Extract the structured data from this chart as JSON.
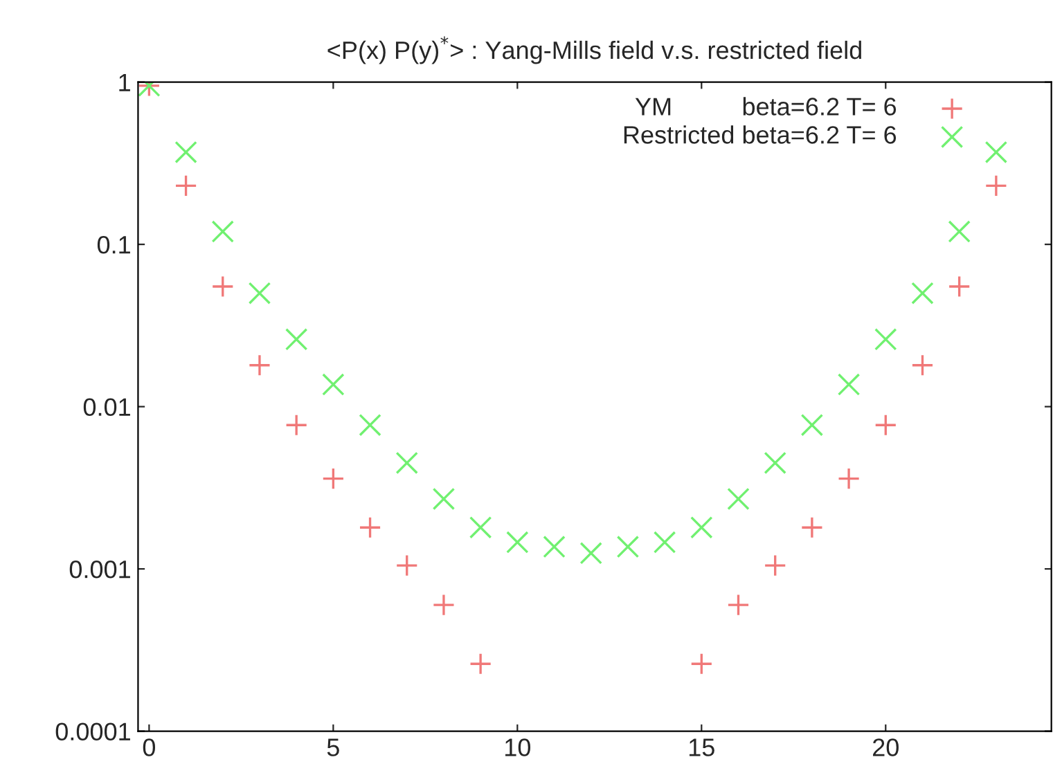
{
  "chart_data": {
    "type": "scatter",
    "title": "<P(x) P(y)$^{*}$> : Yang-Mills field v.s. restricted field",
    "x": [
      0,
      1,
      2,
      3,
      4,
      5,
      6,
      7,
      8,
      9,
      10,
      11,
      12,
      13,
      14,
      15,
      16,
      17,
      18,
      19,
      20,
      21,
      22,
      23
    ],
    "series": [
      {
        "name": "YM          beta=6.2 T= 6",
        "color": "#f07878",
        "marker": "plus",
        "values": [
          0.95,
          0.23,
          0.055,
          0.018,
          0.0077,
          0.0036,
          0.0018,
          0.00105,
          0.0006,
          0.00026,
          null,
          null,
          null,
          null,
          null,
          0.00026,
          0.0006,
          0.00105,
          0.0018,
          0.0036,
          0.0077,
          0.018,
          0.055,
          0.23
        ]
      },
      {
        "name": "Restricted beta=6.2 T= 6",
        "color": "#70f070",
        "marker": "cross",
        "values": [
          0.95,
          0.37,
          0.12,
          0.05,
          0.026,
          0.0137,
          0.0077,
          0.0045,
          0.0027,
          0.0018,
          0.00146,
          0.00137,
          0.00125,
          0.00137,
          0.00146,
          0.0018,
          0.0027,
          0.0045,
          0.0077,
          0.0137,
          0.026,
          0.05,
          0.12,
          0.37
        ]
      }
    ],
    "log": "y",
    "xlim": [
      -0.3,
      24.5
    ],
    "xticks": [
      0,
      5,
      10,
      15,
      20
    ],
    "ylim": [
      0.0001,
      1
    ],
    "yticks": [
      0.0001,
      0.001,
      0.01,
      0.1,
      1
    ],
    "grid": false,
    "legend": "top right"
  }
}
